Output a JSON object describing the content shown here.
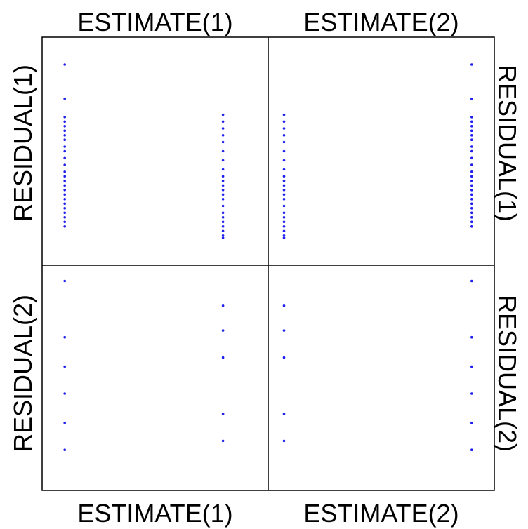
{
  "chart_data": {
    "type": "scatter",
    "title": "",
    "grid": false,
    "colors": {
      "points": "#2020ee",
      "frame": "#000000",
      "background": "#ffffff"
    },
    "columns": [
      "ESTIMATE(1)",
      "ESTIMATE(2)"
    ],
    "rows": [
      "RESIDUAL(1)",
      "RESIDUAL(2)"
    ],
    "labels": {
      "top": [
        "ESTIMATE(1)",
        "ESTIMATE(2)"
      ],
      "bottom": [
        "ESTIMATE(1)",
        "ESTIMATE(2)"
      ],
      "left": [
        "RESIDUAL(1)",
        "RESIDUAL(2)"
      ],
      "right": [
        "RESIDUAL(1)",
        "RESIDUAL(2)"
      ]
    },
    "x_range": [
      0,
      1
    ],
    "y_range": [
      0,
      1
    ],
    "panels": [
      {
        "x_var": "ESTIMATE(1)",
        "y_var": "RESIDUAL(1)",
        "points": [
          {
            "x": 0.1,
            "y": 0.88
          },
          {
            "x": 0.1,
            "y": 0.73
          },
          {
            "x": 0.1,
            "y": 0.65
          },
          {
            "x": 0.1,
            "y": 0.63
          },
          {
            "x": 0.1,
            "y": 0.61
          },
          {
            "x": 0.1,
            "y": 0.59
          },
          {
            "x": 0.1,
            "y": 0.57
          },
          {
            "x": 0.1,
            "y": 0.55
          },
          {
            "x": 0.1,
            "y": 0.52
          },
          {
            "x": 0.1,
            "y": 0.5
          },
          {
            "x": 0.1,
            "y": 0.47
          },
          {
            "x": 0.1,
            "y": 0.44
          },
          {
            "x": 0.1,
            "y": 0.41
          },
          {
            "x": 0.1,
            "y": 0.39
          },
          {
            "x": 0.1,
            "y": 0.37
          },
          {
            "x": 0.1,
            "y": 0.35
          },
          {
            "x": 0.1,
            "y": 0.33
          },
          {
            "x": 0.1,
            "y": 0.31
          },
          {
            "x": 0.1,
            "y": 0.29
          },
          {
            "x": 0.1,
            "y": 0.27
          },
          {
            "x": 0.1,
            "y": 0.25
          },
          {
            "x": 0.1,
            "y": 0.23
          },
          {
            "x": 0.1,
            "y": 0.21
          },
          {
            "x": 0.1,
            "y": 0.19
          },
          {
            "x": 0.1,
            "y": 0.17
          },
          {
            "x": 0.8,
            "y": 0.66
          },
          {
            "x": 0.8,
            "y": 0.63
          },
          {
            "x": 0.8,
            "y": 0.6
          },
          {
            "x": 0.8,
            "y": 0.57
          },
          {
            "x": 0.8,
            "y": 0.54
          },
          {
            "x": 0.8,
            "y": 0.5
          },
          {
            "x": 0.8,
            "y": 0.46
          },
          {
            "x": 0.8,
            "y": 0.42
          },
          {
            "x": 0.8,
            "y": 0.39
          },
          {
            "x": 0.8,
            "y": 0.37
          },
          {
            "x": 0.8,
            "y": 0.35
          },
          {
            "x": 0.8,
            "y": 0.33
          },
          {
            "x": 0.8,
            "y": 0.31
          },
          {
            "x": 0.8,
            "y": 0.29
          },
          {
            "x": 0.8,
            "y": 0.26
          },
          {
            "x": 0.8,
            "y": 0.23
          },
          {
            "x": 0.8,
            "y": 0.21
          },
          {
            "x": 0.8,
            "y": 0.19
          },
          {
            "x": 0.8,
            "y": 0.17
          },
          {
            "x": 0.8,
            "y": 0.15
          },
          {
            "x": 0.8,
            "y": 0.13
          },
          {
            "x": 0.8,
            "y": 0.12
          }
        ]
      },
      {
        "x_var": "ESTIMATE(2)",
        "y_var": "RESIDUAL(1)",
        "points": [
          {
            "x": 0.07,
            "y": 0.66
          },
          {
            "x": 0.07,
            "y": 0.63
          },
          {
            "x": 0.07,
            "y": 0.6
          },
          {
            "x": 0.07,
            "y": 0.57
          },
          {
            "x": 0.07,
            "y": 0.54
          },
          {
            "x": 0.07,
            "y": 0.5
          },
          {
            "x": 0.07,
            "y": 0.46
          },
          {
            "x": 0.07,
            "y": 0.42
          },
          {
            "x": 0.07,
            "y": 0.39
          },
          {
            "x": 0.07,
            "y": 0.37
          },
          {
            "x": 0.07,
            "y": 0.35
          },
          {
            "x": 0.07,
            "y": 0.33
          },
          {
            "x": 0.07,
            "y": 0.31
          },
          {
            "x": 0.07,
            "y": 0.29
          },
          {
            "x": 0.07,
            "y": 0.26
          },
          {
            "x": 0.07,
            "y": 0.23
          },
          {
            "x": 0.07,
            "y": 0.21
          },
          {
            "x": 0.07,
            "y": 0.19
          },
          {
            "x": 0.07,
            "y": 0.17
          },
          {
            "x": 0.07,
            "y": 0.15
          },
          {
            "x": 0.07,
            "y": 0.13
          },
          {
            "x": 0.07,
            "y": 0.12
          },
          {
            "x": 0.9,
            "y": 0.88
          },
          {
            "x": 0.9,
            "y": 0.73
          },
          {
            "x": 0.9,
            "y": 0.65
          },
          {
            "x": 0.9,
            "y": 0.63
          },
          {
            "x": 0.9,
            "y": 0.61
          },
          {
            "x": 0.9,
            "y": 0.59
          },
          {
            "x": 0.9,
            "y": 0.57
          },
          {
            "x": 0.9,
            "y": 0.55
          },
          {
            "x": 0.9,
            "y": 0.52
          },
          {
            "x": 0.9,
            "y": 0.5
          },
          {
            "x": 0.9,
            "y": 0.47
          },
          {
            "x": 0.9,
            "y": 0.44
          },
          {
            "x": 0.9,
            "y": 0.41
          },
          {
            "x": 0.9,
            "y": 0.39
          },
          {
            "x": 0.9,
            "y": 0.37
          },
          {
            "x": 0.9,
            "y": 0.35
          },
          {
            "x": 0.9,
            "y": 0.33
          },
          {
            "x": 0.9,
            "y": 0.31
          },
          {
            "x": 0.9,
            "y": 0.29
          },
          {
            "x": 0.9,
            "y": 0.27
          },
          {
            "x": 0.9,
            "y": 0.25
          },
          {
            "x": 0.9,
            "y": 0.23
          },
          {
            "x": 0.9,
            "y": 0.21
          },
          {
            "x": 0.9,
            "y": 0.19
          },
          {
            "x": 0.9,
            "y": 0.17
          }
        ]
      },
      {
        "x_var": "ESTIMATE(1)",
        "y_var": "RESIDUAL(2)",
        "points": [
          {
            "x": 0.1,
            "y": 0.93
          },
          {
            "x": 0.1,
            "y": 0.68
          },
          {
            "x": 0.1,
            "y": 0.55
          },
          {
            "x": 0.1,
            "y": 0.43
          },
          {
            "x": 0.1,
            "y": 0.3
          },
          {
            "x": 0.1,
            "y": 0.18
          },
          {
            "x": 0.8,
            "y": 0.82
          },
          {
            "x": 0.8,
            "y": 0.71
          },
          {
            "x": 0.8,
            "y": 0.59
          },
          {
            "x": 0.8,
            "y": 0.34
          },
          {
            "x": 0.8,
            "y": 0.22
          }
        ]
      },
      {
        "x_var": "ESTIMATE(2)",
        "y_var": "RESIDUAL(2)",
        "points": [
          {
            "x": 0.07,
            "y": 0.82
          },
          {
            "x": 0.07,
            "y": 0.71
          },
          {
            "x": 0.07,
            "y": 0.59
          },
          {
            "x": 0.07,
            "y": 0.34
          },
          {
            "x": 0.07,
            "y": 0.22
          },
          {
            "x": 0.9,
            "y": 0.93
          },
          {
            "x": 0.9,
            "y": 0.68
          },
          {
            "x": 0.9,
            "y": 0.55
          },
          {
            "x": 0.9,
            "y": 0.43
          },
          {
            "x": 0.9,
            "y": 0.3
          },
          {
            "x": 0.9,
            "y": 0.18
          }
        ]
      }
    ]
  }
}
